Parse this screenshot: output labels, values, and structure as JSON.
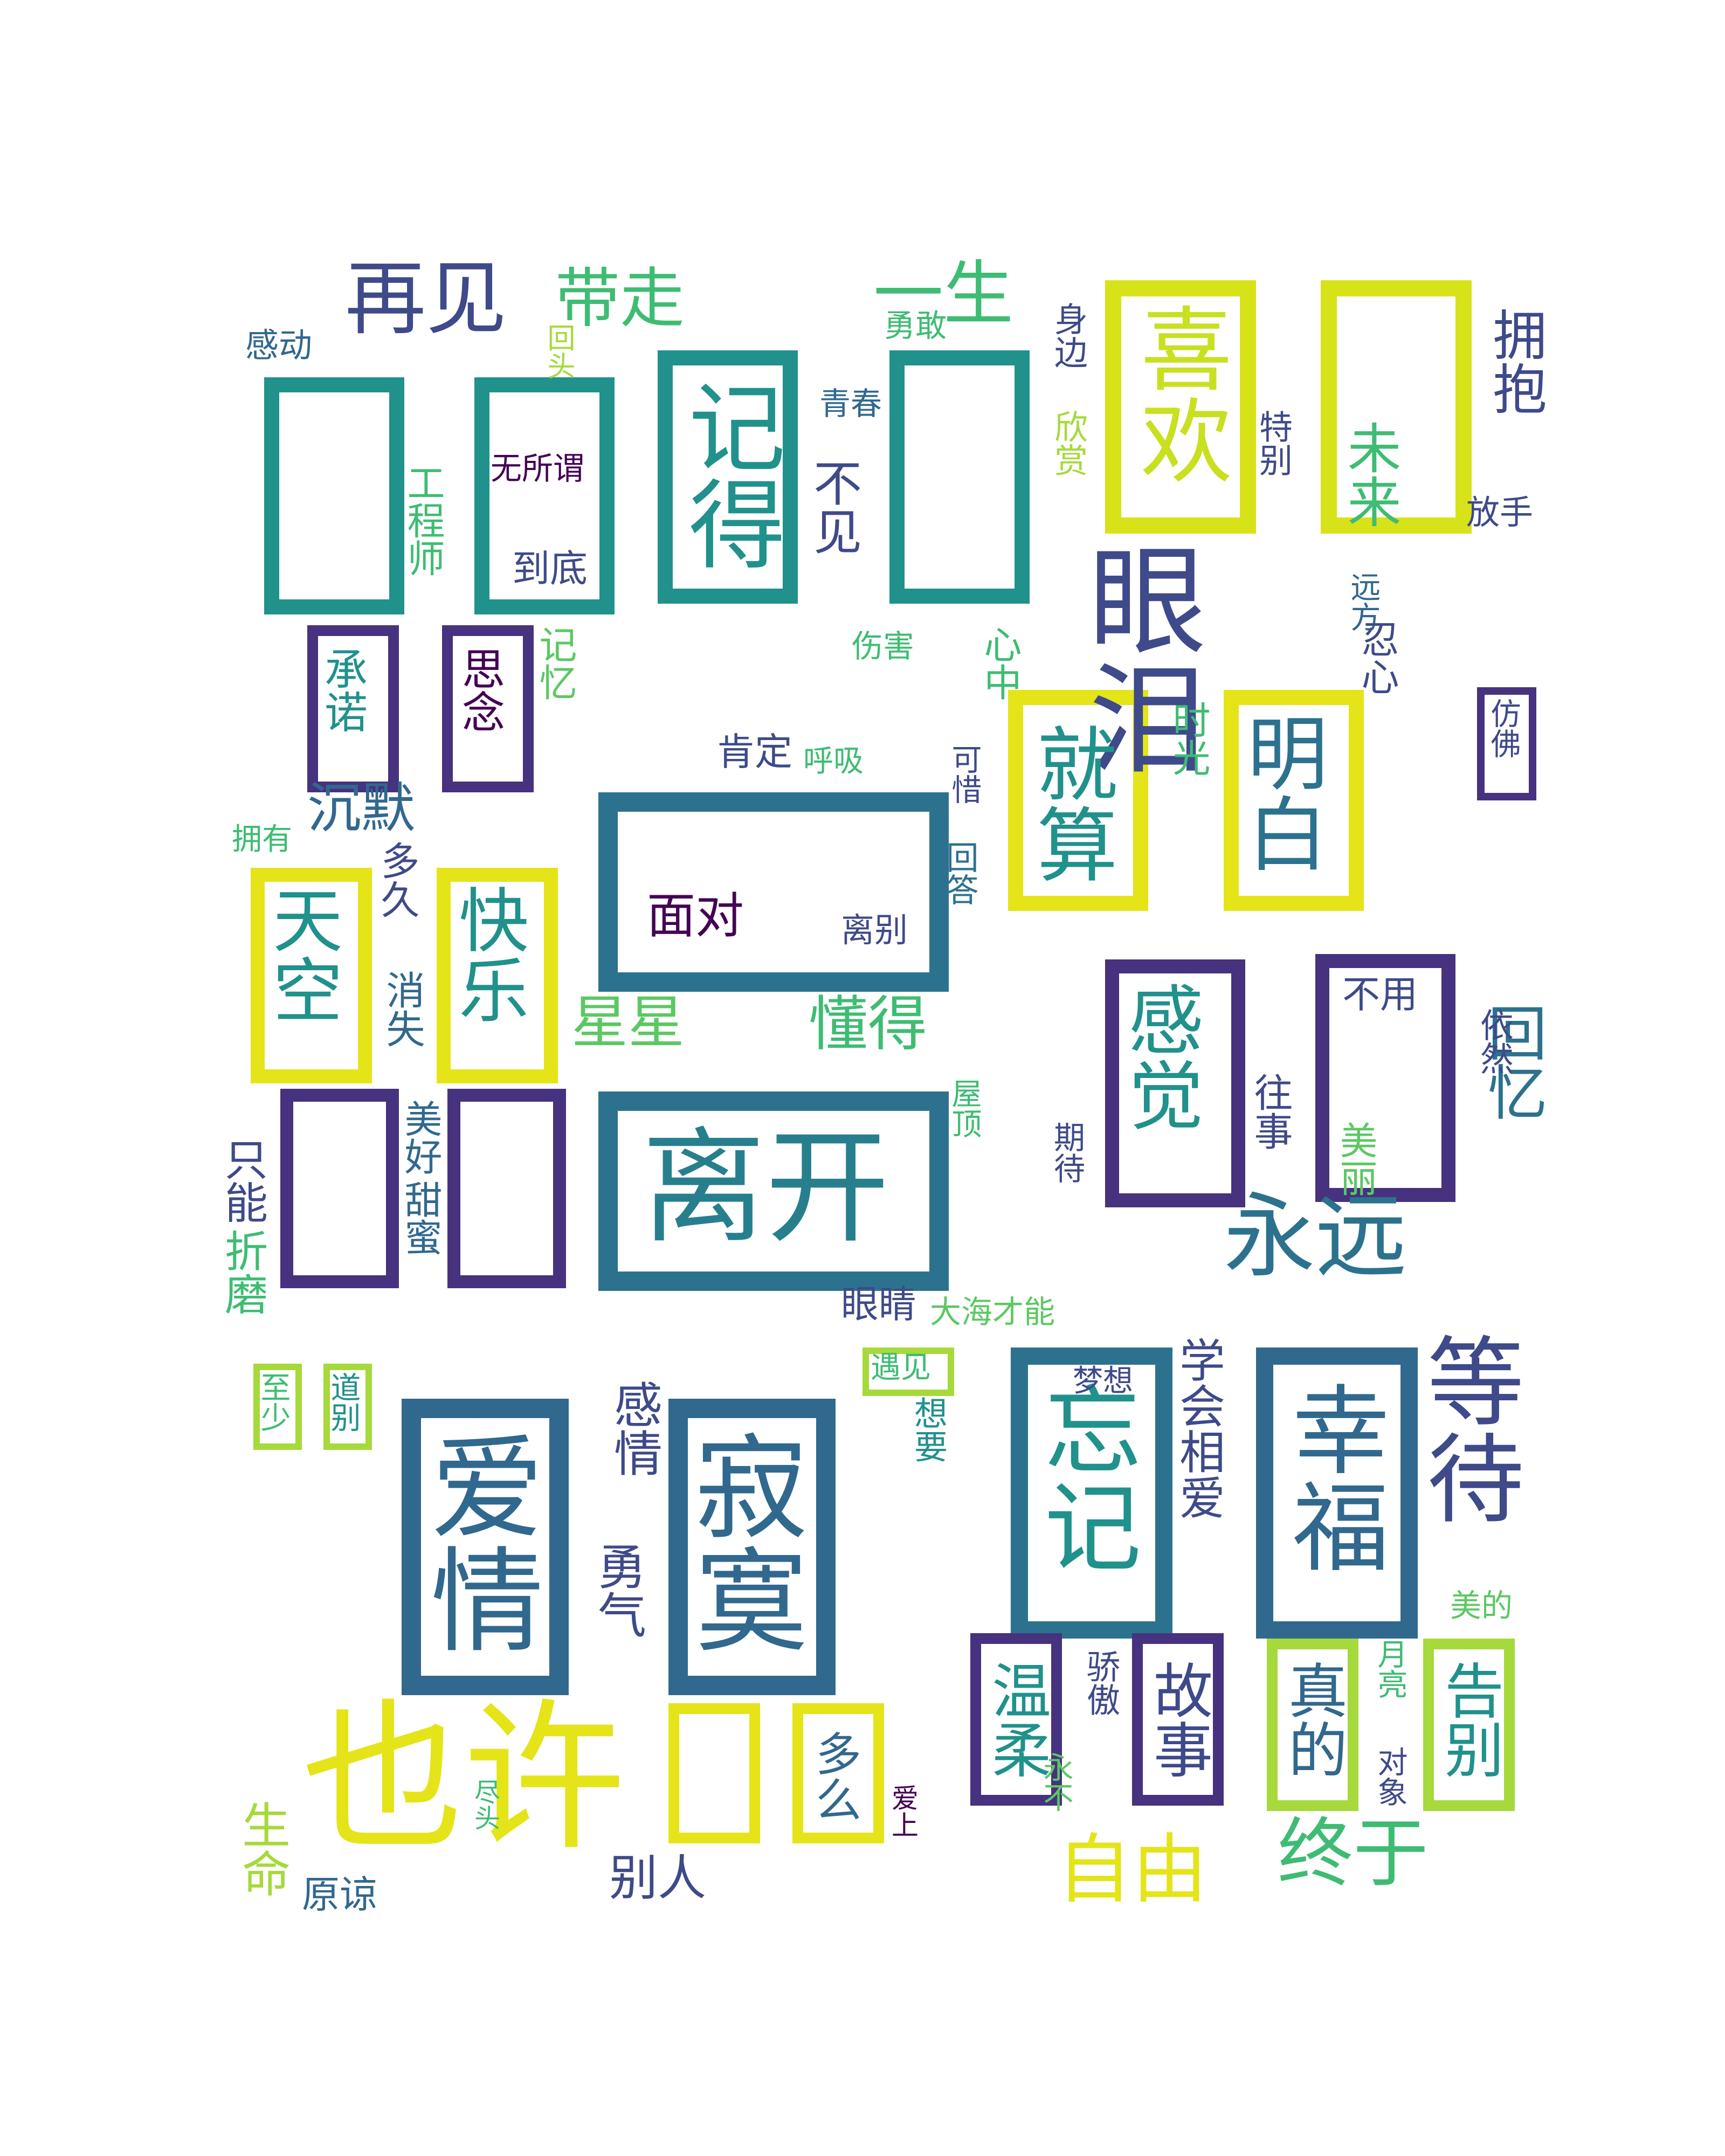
{
  "palette": {
    "yellow": "#e4e419",
    "lime": "#a6d93c",
    "green": "#3fbc73",
    "teal": "#21918c",
    "tealblue": "#277f8e",
    "blue": "#31688e",
    "indigo": "#3e4a89",
    "purple": "#46327e",
    "dark": "#440154",
    "mint": "#5cc863"
  },
  "words": [
    {
      "text": "也许",
      "color": "#e4e419"
    },
    {
      "text": "离开",
      "color": "#277f8e"
    },
    {
      "text": "眼泪",
      "color": "#3e4a89"
    },
    {
      "text": "永远",
      "color": "#2c728e"
    },
    {
      "text": "寂寞",
      "color": "#31688e"
    },
    {
      "text": "爱情",
      "color": "#31688e"
    },
    {
      "text": "等待",
      "color": "#3e4a89"
    },
    {
      "text": "幸福",
      "color": "#31688e"
    },
    {
      "text": "忘记",
      "color": "#21918c"
    },
    {
      "text": "记得",
      "color": "#21918c"
    },
    {
      "text": "喜欢",
      "color": "#c8e020"
    },
    {
      "text": "再见",
      "color": "#3e4a89"
    },
    {
      "text": "一生",
      "color": "#3fbc73"
    },
    {
      "text": "带走",
      "color": "#3fbc73"
    },
    {
      "text": "就算",
      "color": "#21918c"
    },
    {
      "text": "明白",
      "color": "#2c728e"
    },
    {
      "text": "感觉",
      "color": "#21918c"
    },
    {
      "text": "快乐",
      "color": "#21918c"
    },
    {
      "text": "天空",
      "color": "#21918c"
    },
    {
      "text": "自由",
      "color": "#e4e419"
    },
    {
      "text": "终于",
      "color": "#3fbc73"
    },
    {
      "text": "温柔",
      "color": "#21918c"
    },
    {
      "text": "故事",
      "color": "#3e4a89"
    },
    {
      "text": "真的",
      "color": "#31688e"
    },
    {
      "text": "告别",
      "color": "#21918c"
    },
    {
      "text": "懂得",
      "color": "#3fbc73"
    },
    {
      "text": "星星",
      "color": "#5cc863"
    },
    {
      "text": "回忆",
      "color": "#2c728e"
    },
    {
      "text": "拥抱",
      "color": "#3e4a89"
    },
    {
      "text": "未来",
      "color": "#3fbc73"
    },
    {
      "text": "沉默",
      "color": "#31688e"
    },
    {
      "text": "面对",
      "color": "#440154"
    },
    {
      "text": "学会相爱",
      "color": "#3e4a89"
    },
    {
      "text": "勇气",
      "color": "#3e4a89"
    },
    {
      "text": "感情",
      "color": "#3e4a89"
    },
    {
      "text": "生命",
      "color": "#a6d93c"
    },
    {
      "text": "别人",
      "color": "#3e4a89"
    },
    {
      "text": "眼睛",
      "color": "#3e4a89"
    },
    {
      "text": "不见",
      "color": "#3e4a89"
    },
    {
      "text": "思念",
      "color": "#440154"
    },
    {
      "text": "承诺",
      "color": "#21918c"
    },
    {
      "text": "工程师",
      "color": "#3fbc73"
    },
    {
      "text": "无所谓",
      "color": "#440154"
    },
    {
      "text": "到底",
      "color": "#3e4a89"
    },
    {
      "text": "记忆",
      "color": "#5cc863"
    },
    {
      "text": "伤害",
      "color": "#3fbc73"
    },
    {
      "text": "心中",
      "color": "#3fbc73"
    },
    {
      "text": "时光",
      "color": "#3fbc73"
    },
    {
      "text": "肯定",
      "color": "#3e4a89"
    },
    {
      "text": "呼吸",
      "color": "#3fbc73"
    },
    {
      "text": "回答",
      "color": "#2c728e"
    },
    {
      "text": "可惜",
      "color": "#3e4a89"
    },
    {
      "text": "离别",
      "color": "#3e4a89"
    },
    {
      "text": "拥有",
      "color": "#3fbc73"
    },
    {
      "text": "多久",
      "color": "#3e4a89"
    },
    {
      "text": "消失",
      "color": "#31688e"
    },
    {
      "text": "美好",
      "color": "#31688e"
    },
    {
      "text": "甜蜜",
      "color": "#31688e"
    },
    {
      "text": "只能",
      "color": "#3e4a89"
    },
    {
      "text": "折磨",
      "color": "#3fbc73"
    },
    {
      "text": "至少",
      "color": "#3fbc73"
    },
    {
      "text": "道别",
      "color": "#21918c"
    },
    {
      "text": "原谅",
      "color": "#31688e"
    },
    {
      "text": "尽头",
      "color": "#3fbc73"
    },
    {
      "text": "多么",
      "color": "#31688e"
    },
    {
      "text": "爱上",
      "color": "#440154"
    },
    {
      "text": "永不",
      "color": "#5cc863"
    },
    {
      "text": "骄傲",
      "color": "#3e4a89"
    },
    {
      "text": "遇见",
      "color": "#3fbc73"
    },
    {
      "text": "想要",
      "color": "#21918c"
    },
    {
      "text": "梦想",
      "color": "#3e4a89"
    },
    {
      "text": "大海才能",
      "color": "#5cc863"
    },
    {
      "text": "期待",
      "color": "#3e4a89"
    },
    {
      "text": "屋顶",
      "color": "#3fbc73"
    },
    {
      "text": "往事",
      "color": "#3e4a89"
    },
    {
      "text": "不用",
      "color": "#3e4a89"
    },
    {
      "text": "美丽",
      "color": "#5cc863"
    },
    {
      "text": "依然",
      "color": "#3e4a89"
    },
    {
      "text": "仿佛",
      "color": "#3e4a89"
    },
    {
      "text": "特别",
      "color": "#3e4a89"
    },
    {
      "text": "欣赏",
      "color": "#a6d93c"
    },
    {
      "text": "身边",
      "color": "#3e4a89"
    },
    {
      "text": "放手",
      "color": "#3e4a89"
    },
    {
      "text": "远方",
      "color": "#31688e"
    },
    {
      "text": "忍心",
      "color": "#3e4a89"
    },
    {
      "text": "勇敢",
      "color": "#3fbc73"
    },
    {
      "text": "青春",
      "color": "#31688e"
    },
    {
      "text": "回头",
      "color": "#a6d93c"
    },
    {
      "text": "感动",
      "color": "#31688e"
    },
    {
      "text": "美的",
      "color": "#5cc863"
    },
    {
      "text": "对象",
      "color": "#3e4a89"
    },
    {
      "text": "月亮",
      "color": "#3fbc73"
    }
  ]
}
